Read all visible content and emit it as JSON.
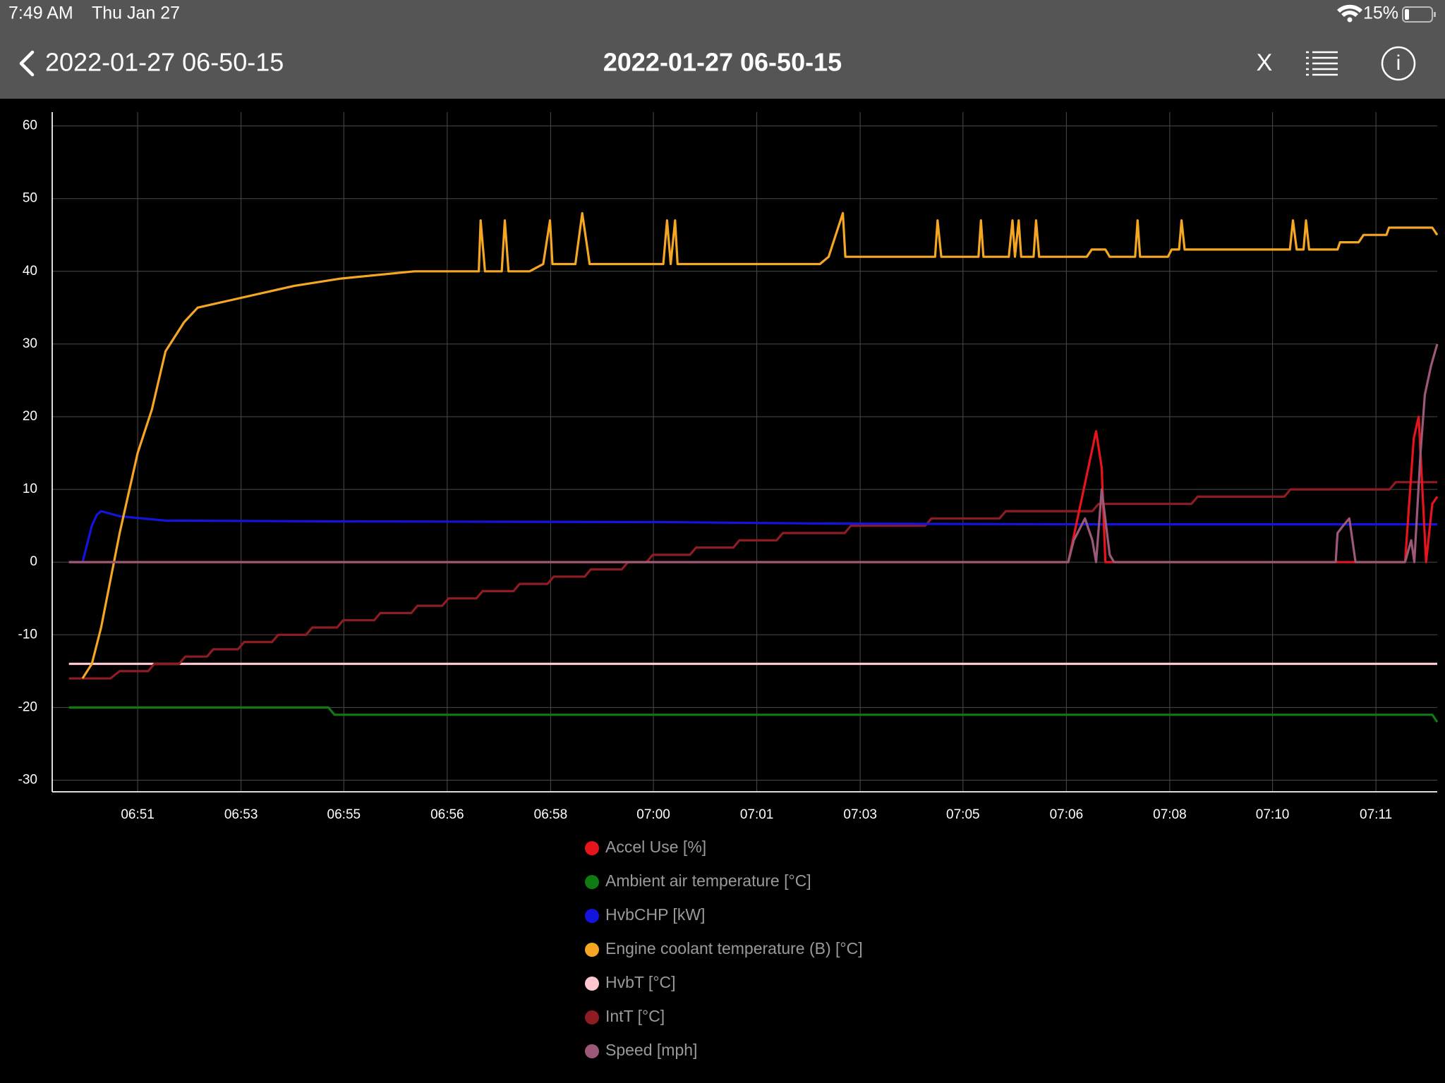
{
  "status_bar": {
    "time": "7:49 AM",
    "date": "Thu Jan 27",
    "battery": "15%"
  },
  "nav_bar": {
    "back_label": "2022-01-27 06-50-15",
    "title": "2022-01-27 06-50-15",
    "close": "X",
    "info": "i"
  },
  "chart_data": {
    "type": "line",
    "grid": true,
    "xlim": [
      50,
      72.37
    ],
    "ylim": [
      -31.6,
      61.9
    ],
    "xticks": [
      {
        "value": 51.38,
        "label": "06:51"
      },
      {
        "value": 53.05,
        "label": "06:53"
      },
      {
        "value": 54.71,
        "label": "06:55"
      },
      {
        "value": 56.38,
        "label": "06:56"
      },
      {
        "value": 58.05,
        "label": "06:58"
      },
      {
        "value": 59.71,
        "label": "07:00"
      },
      {
        "value": 61.38,
        "label": "07:01"
      },
      {
        "value": 63.05,
        "label": "07:03"
      },
      {
        "value": 64.71,
        "label": "07:05"
      },
      {
        "value": 66.38,
        "label": "07:06"
      },
      {
        "value": 68.05,
        "label": "07:08"
      },
      {
        "value": 69.71,
        "label": "07:10"
      },
      {
        "value": 71.38,
        "label": "07:11"
      }
    ],
    "yticks": [
      -30,
      -20,
      -10,
      0,
      10,
      20,
      30,
      40,
      50,
      60
    ],
    "series": [
      {
        "name": "Accel Use [%]",
        "color": "#e8141b",
        "x": [
          50.27,
          66.41,
          66.86,
          66.95,
          67.01,
          71.85,
          71.99,
          72.07,
          72.19,
          72.29,
          72.37
        ],
        "values": [
          0,
          0,
          18,
          13,
          0,
          0,
          17,
          20,
          0,
          8,
          9
        ]
      },
      {
        "name": "Ambient air temperature [°C]",
        "color": "#0f7a12",
        "x": [
          50.27,
          54.46,
          54.56,
          72.29,
          72.37
        ],
        "values": [
          -20,
          -20,
          -21,
          -21,
          -22
        ]
      },
      {
        "name": "HvbCHP [kW]",
        "color": "#1414e0",
        "x": [
          50.27,
          50.49,
          50.64,
          50.72,
          50.79,
          51.09,
          51.83,
          54.66,
          59.87,
          62.54,
          66.71,
          72.37
        ],
        "values": [
          0,
          0,
          5,
          6.5,
          7,
          6.3,
          5.7,
          5.6,
          5.5,
          5.3,
          5.2,
          5.2
        ]
      },
      {
        "name": "Engine coolant temperature (B) [°C]",
        "color": "#f5a623",
        "x": [
          50.49,
          50.64,
          50.79,
          51.09,
          51.38,
          51.61,
          51.83,
          52.13,
          52.35,
          52.87,
          53.39,
          53.91,
          54.66,
          55.85,
          56.89,
          56.92,
          56.99,
          57.26,
          57.31,
          57.37,
          57.71,
          57.93,
          58.04,
          58.08,
          58.45,
          58.56,
          58.68,
          59.87,
          59.93,
          59.99,
          60.06,
          60.1,
          62.4,
          62.54,
          62.77,
          62.81,
          64.26,
          64.3,
          64.36,
          64.96,
          65.0,
          65.04,
          65.45,
          65.51,
          65.55,
          65.61,
          65.65,
          65.85,
          65.89,
          65.94,
          66.71,
          66.79,
          67.01,
          67.08,
          67.49,
          67.53,
          67.57,
          68.02,
          68.08,
          68.2,
          68.24,
          68.29,
          69.99,
          70.04,
          70.1,
          70.21,
          70.25,
          70.3,
          70.76,
          70.8,
          71.1,
          71.18,
          71.55,
          71.59,
          72.29,
          72.37
        ],
        "values": [
          -16,
          -14,
          -9,
          4,
          15,
          21,
          29,
          33,
          35,
          36,
          37,
          38,
          39,
          40,
          40,
          47,
          40,
          40,
          47,
          40,
          40,
          41,
          47,
          41,
          41,
          48,
          41,
          41,
          47,
          41,
          47,
          41,
          41,
          42,
          48,
          42,
          42,
          47,
          42,
          42,
          47,
          42,
          42,
          47,
          42,
          47,
          42,
          42,
          47,
          42,
          42,
          43,
          43,
          42,
          42,
          47,
          42,
          42,
          43,
          43,
          47,
          43,
          43,
          47,
          43,
          43,
          47,
          43,
          43,
          44,
          44,
          45,
          45,
          46,
          46,
          45
        ]
      },
      {
        "name": "HvbT [°C]",
        "color": "#ffc8d0",
        "x": [
          50.27,
          72.37
        ],
        "values": [
          -14,
          -14
        ]
      },
      {
        "name": "IntT [°C]",
        "color": "#8e1c22",
        "x": [
          50.27,
          50.94,
          51.09,
          51.55,
          51.65,
          52.05,
          52.15,
          52.5,
          52.6,
          53.0,
          53.1,
          53.55,
          53.65,
          54.1,
          54.2,
          54.6,
          54.7,
          55.2,
          55.3,
          55.8,
          55.9,
          56.3,
          56.4,
          56.85,
          56.95,
          57.45,
          57.55,
          58.0,
          58.1,
          58.6,
          58.7,
          59.2,
          59.3,
          59.6,
          59.7,
          60.3,
          60.4,
          61.0,
          61.1,
          61.7,
          61.8,
          62.8,
          62.9,
          64.1,
          64.2,
          65.3,
          65.4,
          66.8,
          66.9,
          68.4,
          68.5,
          69.9,
          70.0,
          71.6,
          71.7,
          72.37
        ],
        "values": [
          -16,
          -16,
          -15,
          -15,
          -14,
          -14,
          -13,
          -13,
          -12,
          -12,
          -11,
          -11,
          -10,
          -10,
          -9,
          -9,
          -8,
          -8,
          -7,
          -7,
          -6,
          -6,
          -5,
          -5,
          -4,
          -4,
          -3,
          -3,
          -2,
          -2,
          -1,
          -1,
          0,
          0,
          1,
          1,
          2,
          2,
          3,
          3,
          4,
          4,
          5,
          5,
          6,
          6,
          7,
          7,
          8,
          8,
          9,
          9,
          10,
          10,
          11,
          11
        ]
      },
      {
        "name": "Speed [mph]",
        "color": "#9b5878",
        "x": [
          50.27,
          66.41,
          66.5,
          66.68,
          66.8,
          66.86,
          66.95,
          67.08,
          67.15,
          70.73,
          70.76,
          70.85,
          70.95,
          71.0,
          71.05,
          71.85,
          71.95,
          72.0,
          72.1,
          72.17,
          72.27,
          72.37
        ],
        "values": [
          0,
          0,
          3,
          6,
          3,
          0,
          10,
          1,
          0,
          0,
          4,
          5,
          6,
          3,
          0,
          0,
          3,
          0,
          15,
          23,
          27,
          30
        ]
      }
    ]
  }
}
